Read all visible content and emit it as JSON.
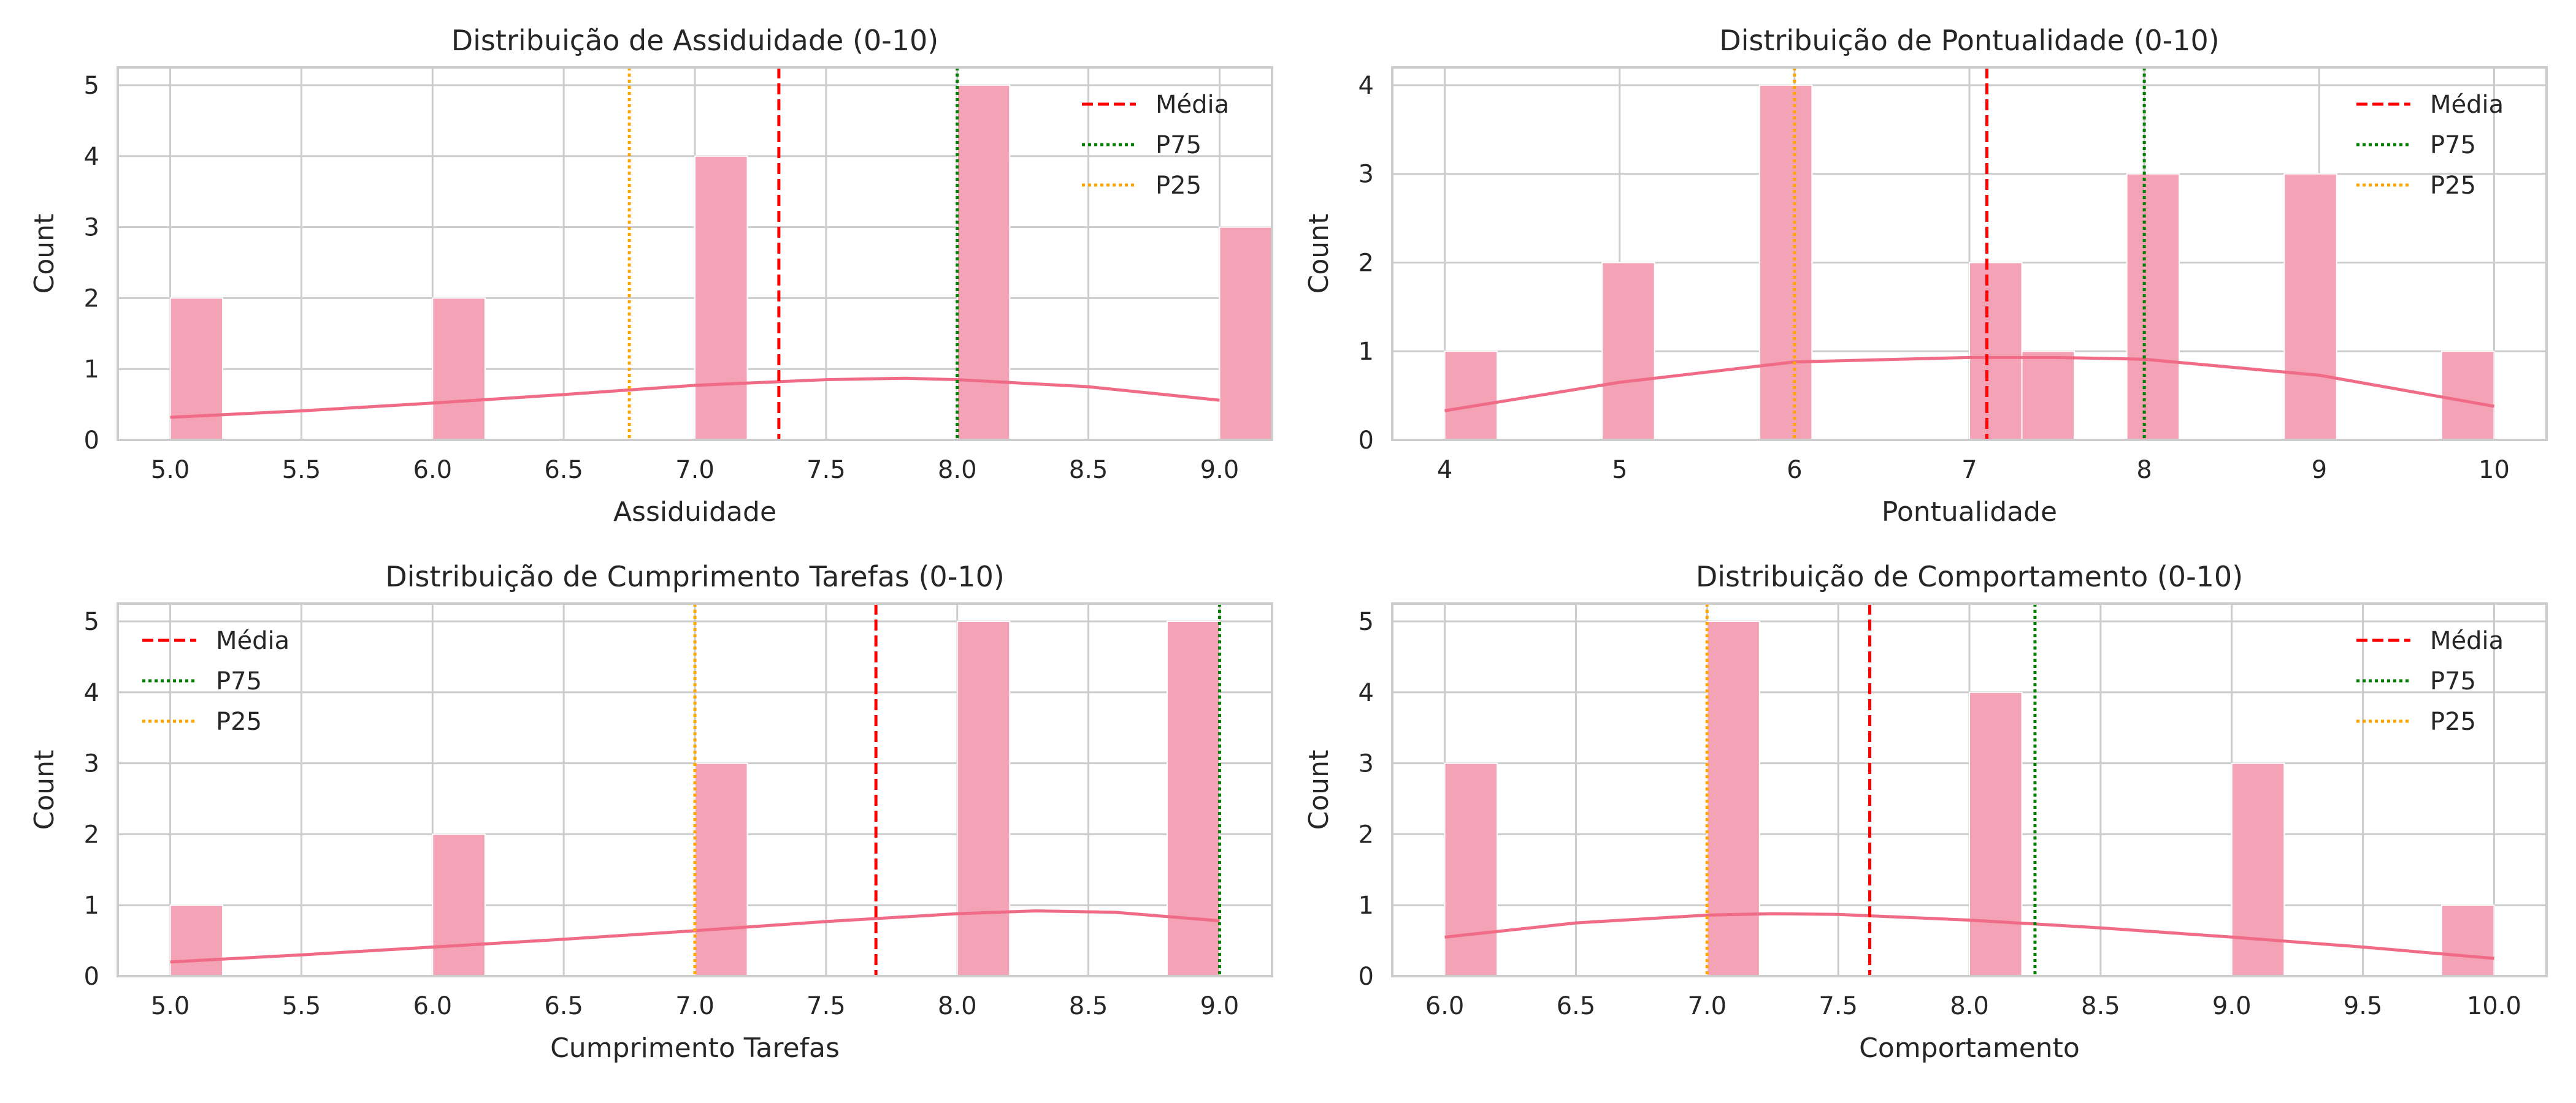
{
  "colors": {
    "bar_fill": "#f4a3b6",
    "kde_line": "#f06b85",
    "mean_line": "#ff0000",
    "p75_line": "#008000",
    "p25_line": "#ffa500",
    "grid": "#cccccc",
    "spine": "#cccccc",
    "text": "#262626"
  },
  "chart_data": [
    {
      "type": "bar",
      "title": "Distribuição de Assiduidade (0-10)",
      "xlabel": "Assiduidade",
      "ylabel": "Count",
      "xlim": [
        4.8,
        9.2
      ],
      "ylim": [
        0,
        5.25
      ],
      "xticks": [
        5.0,
        5.5,
        6.0,
        6.5,
        7.0,
        7.5,
        8.0,
        8.5,
        9.0
      ],
      "xtick_labels": [
        "5.0",
        "5.5",
        "6.0",
        "6.5",
        "7.0",
        "7.5",
        "8.0",
        "8.5",
        "9.0"
      ],
      "yticks": [
        0,
        1,
        2,
        3,
        4,
        5
      ],
      "ytick_labels": [
        "0",
        "1",
        "2",
        "3",
        "4",
        "5"
      ],
      "bars": [
        {
          "x0": 5.0,
          "x1": 5.2,
          "count": 2
        },
        {
          "x0": 6.0,
          "x1": 6.2,
          "count": 2
        },
        {
          "x0": 7.0,
          "x1": 7.2,
          "count": 4
        },
        {
          "x0": 8.0,
          "x1": 8.2,
          "count": 5
        },
        {
          "x0": 9.0,
          "x1": 9.2,
          "count": 3
        }
      ],
      "kde": {
        "x": [
          5.0,
          5.5,
          6.0,
          6.5,
          7.0,
          7.5,
          7.8,
          8.0,
          8.5,
          9.0
        ],
        "y": [
          0.32,
          0.41,
          0.52,
          0.64,
          0.77,
          0.85,
          0.87,
          0.85,
          0.75,
          0.56
        ]
      },
      "mean": 7.32,
      "p75": 8.0,
      "p25": 6.75,
      "legend": [
        "Média",
        "P75",
        "P25"
      ],
      "legend_position": "top-right",
      "grid": true
    },
    {
      "type": "bar",
      "title": "Distribuição de Pontualidade (0-10)",
      "xlabel": "Pontualidade",
      "ylabel": "Count",
      "xlim": [
        3.7,
        10.3
      ],
      "ylim": [
        0,
        4.2
      ],
      "xticks": [
        4,
        5,
        6,
        7,
        8,
        9,
        10
      ],
      "xtick_labels": [
        "4",
        "5",
        "6",
        "7",
        "8",
        "9",
        "10"
      ],
      "yticks": [
        0,
        1,
        2,
        3,
        4
      ],
      "ytick_labels": [
        "0",
        "1",
        "2",
        "3",
        "4"
      ],
      "bars": [
        {
          "x0": 4.0,
          "x1": 4.3,
          "count": 1
        },
        {
          "x0": 4.9,
          "x1": 5.2,
          "count": 2
        },
        {
          "x0": 5.8,
          "x1": 6.1,
          "count": 4
        },
        {
          "x0": 7.0,
          "x1": 7.3,
          "count": 2
        },
        {
          "x0": 7.3,
          "x1": 7.6,
          "count": 1
        },
        {
          "x0": 7.9,
          "x1": 8.2,
          "count": 3
        },
        {
          "x0": 8.8,
          "x1": 9.1,
          "count": 3
        },
        {
          "x0": 9.7,
          "x1": 10.0,
          "count": 1
        }
      ],
      "kde": {
        "x": [
          4.0,
          5.0,
          6.0,
          7.0,
          7.5,
          8.0,
          9.0,
          10.0
        ],
        "y": [
          0.33,
          0.65,
          0.88,
          0.93,
          0.93,
          0.91,
          0.73,
          0.38
        ]
      },
      "mean": 7.1,
      "p75": 8.0,
      "p25": 6.0,
      "legend": [
        "Média",
        "P75",
        "P25"
      ],
      "legend_position": "top-right",
      "grid": true
    },
    {
      "type": "bar",
      "title": "Distribuição de Cumprimento Tarefas (0-10)",
      "xlabel": "Cumprimento Tarefas",
      "ylabel": "Count",
      "xlim": [
        4.8,
        9.2
      ],
      "ylim": [
        0,
        5.25
      ],
      "xticks": [
        5.0,
        5.5,
        6.0,
        6.5,
        7.0,
        7.5,
        8.0,
        8.5,
        9.0
      ],
      "xtick_labels": [
        "5.0",
        "5.5",
        "6.0",
        "6.5",
        "7.0",
        "7.5",
        "8.0",
        "8.5",
        "9.0"
      ],
      "yticks": [
        0,
        1,
        2,
        3,
        4,
        5
      ],
      "ytick_labels": [
        "0",
        "1",
        "2",
        "3",
        "4",
        "5"
      ],
      "bars": [
        {
          "x0": 5.0,
          "x1": 5.2,
          "count": 1
        },
        {
          "x0": 6.0,
          "x1": 6.2,
          "count": 2
        },
        {
          "x0": 7.0,
          "x1": 7.2,
          "count": 3
        },
        {
          "x0": 8.0,
          "x1": 8.2,
          "count": 5
        },
        {
          "x0": 8.8,
          "x1": 9.0,
          "count": 5
        }
      ],
      "kde": {
        "x": [
          5.0,
          5.5,
          6.0,
          6.5,
          7.0,
          7.5,
          8.0,
          8.3,
          8.6,
          9.0
        ],
        "y": [
          0.2,
          0.3,
          0.41,
          0.52,
          0.64,
          0.77,
          0.88,
          0.92,
          0.9,
          0.78
        ]
      },
      "mean": 7.69,
      "p75": 9.0,
      "p25": 7.0,
      "legend": [
        "Média",
        "P75",
        "P25"
      ],
      "legend_position": "top-left",
      "grid": true
    },
    {
      "type": "bar",
      "title": "Distribuição de Comportamento (0-10)",
      "xlabel": "Comportamento",
      "ylabel": "Count",
      "xlim": [
        5.8,
        10.2
      ],
      "ylim": [
        0,
        5.25
      ],
      "xticks": [
        6.0,
        6.5,
        7.0,
        7.5,
        8.0,
        8.5,
        9.0,
        9.5,
        10.0
      ],
      "xtick_labels": [
        "6.0",
        "6.5",
        "7.0",
        "7.5",
        "8.0",
        "8.5",
        "9.0",
        "9.5",
        "10.0"
      ],
      "yticks": [
        0,
        1,
        2,
        3,
        4,
        5
      ],
      "ytick_labels": [
        "0",
        "1",
        "2",
        "3",
        "4",
        "5"
      ],
      "bars": [
        {
          "x0": 6.0,
          "x1": 6.2,
          "count": 3
        },
        {
          "x0": 7.0,
          "x1": 7.2,
          "count": 5
        },
        {
          "x0": 8.0,
          "x1": 8.2,
          "count": 4
        },
        {
          "x0": 9.0,
          "x1": 9.2,
          "count": 3
        },
        {
          "x0": 9.8,
          "x1": 10.0,
          "count": 1
        }
      ],
      "kde": {
        "x": [
          6.0,
          6.5,
          7.0,
          7.25,
          7.5,
          8.0,
          8.5,
          9.0,
          9.5,
          10.0
        ],
        "y": [
          0.55,
          0.75,
          0.86,
          0.88,
          0.87,
          0.79,
          0.68,
          0.55,
          0.41,
          0.25
        ]
      },
      "mean": 7.62,
      "p75": 8.25,
      "p25": 7.0,
      "legend": [
        "Média",
        "P75",
        "P25"
      ],
      "legend_position": "top-right",
      "grid": true
    }
  ]
}
